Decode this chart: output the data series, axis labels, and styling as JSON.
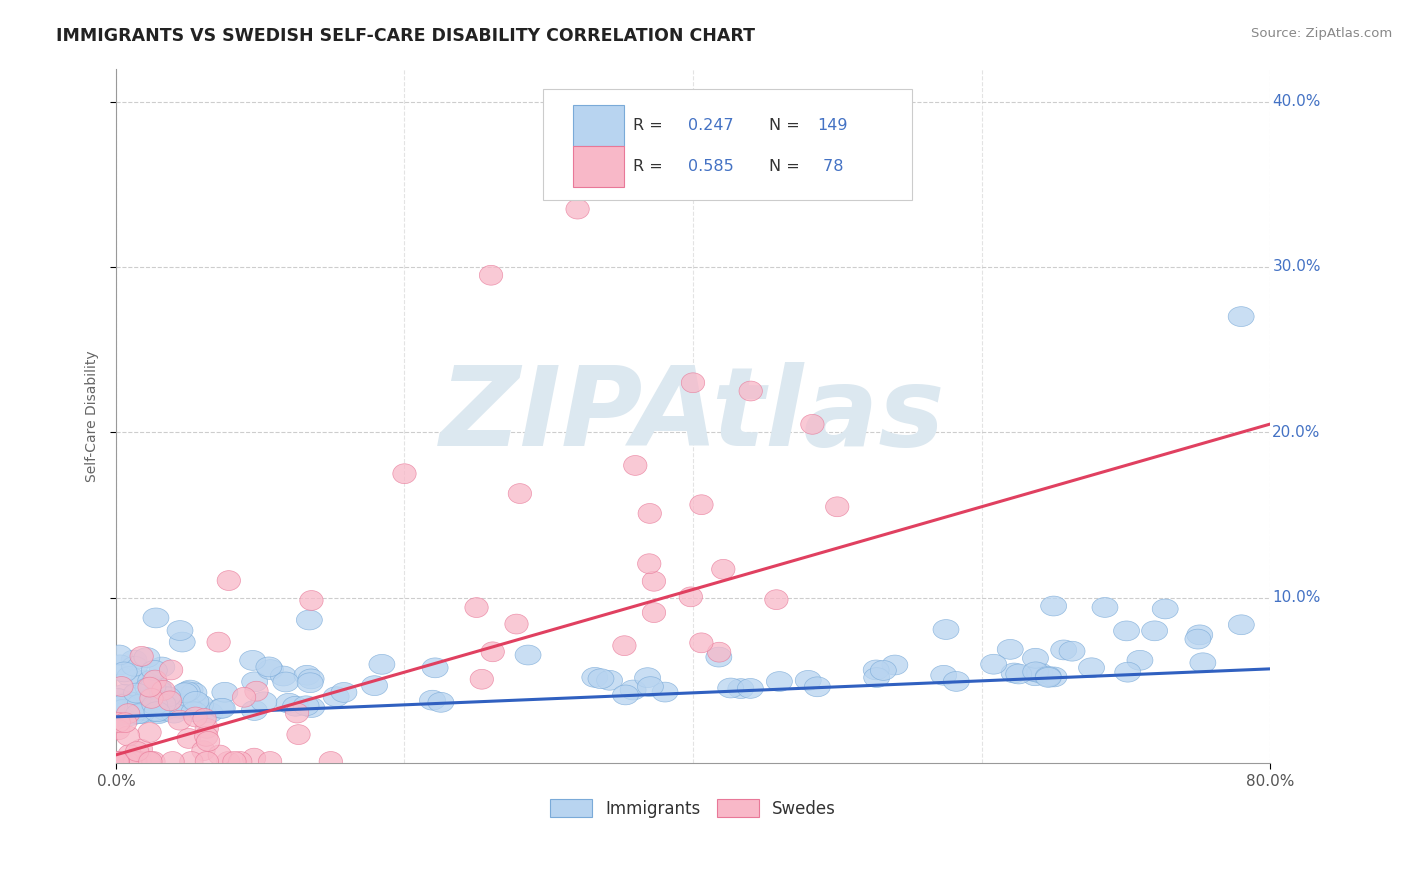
{
  "title": "IMMIGRANTS VS SWEDISH SELF-CARE DISABILITY CORRELATION CHART",
  "source": "Source: ZipAtlas.com",
  "ylabel": "Self-Care Disability",
  "xlim": [
    0.0,
    0.8
  ],
  "ylim": [
    0.0,
    0.42
  ],
  "imm_R": 0.247,
  "imm_N": 149,
  "swe_R": 0.585,
  "swe_N": 78,
  "imm_color": "#b8d4f0",
  "swe_color": "#f8b8c8",
  "imm_edge_color": "#7aaad8",
  "swe_edge_color": "#e87898",
  "imm_line_color": "#3060c0",
  "swe_line_color": "#e04060",
  "bg_color": "#ffffff",
  "grid_color": "#c8c8c8",
  "title_color": "#222222",
  "watermark_color": "#dce8f0",
  "legend_color": "#4472c4",
  "ytick_vals": [
    0.1,
    0.2,
    0.3,
    0.4
  ],
  "ytick_labels": [
    "10.0%",
    "20.0%",
    "30.0%",
    "40.0%"
  ],
  "imm_line_x0": 0.0,
  "imm_line_x1": 0.8,
  "imm_line_y0": 0.028,
  "imm_line_y1": 0.057,
  "swe_line_x0": 0.0,
  "swe_line_x1": 0.8,
  "swe_line_y0": 0.005,
  "swe_line_y1": 0.205
}
